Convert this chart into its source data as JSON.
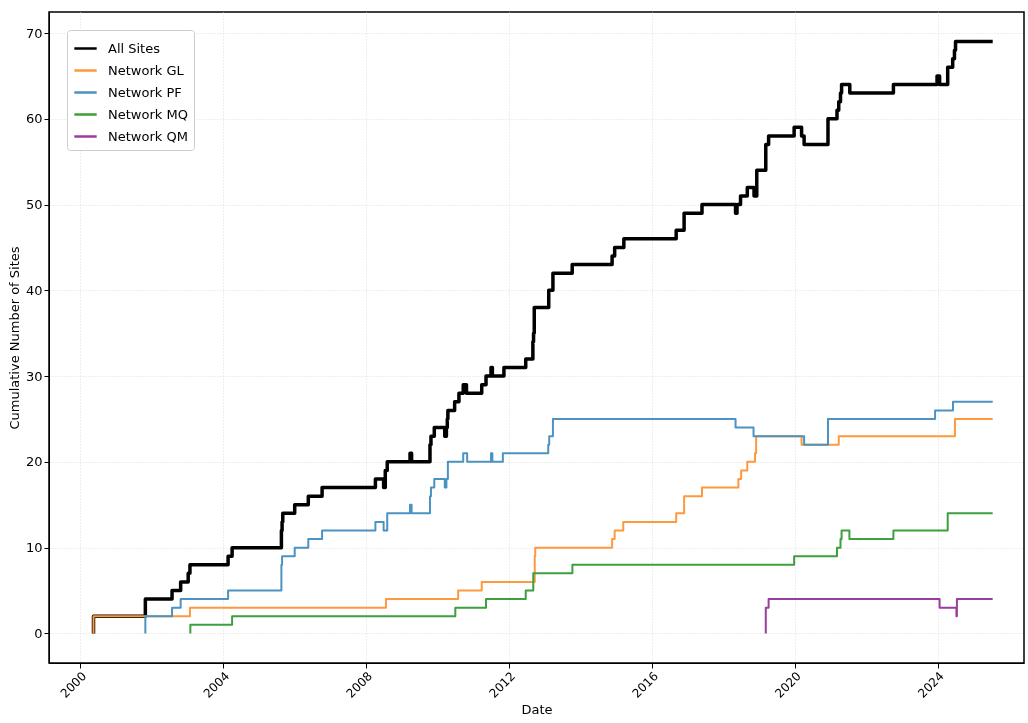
{
  "chart_data": {
    "type": "step",
    "xlabel": "Date",
    "ylabel": "Cumulative Number of Sites",
    "xlim": [
      "1999-02-15",
      "2026-06-01"
    ],
    "xticks": [
      "2000",
      "2004",
      "2008",
      "2012",
      "2016",
      "2020",
      "2024"
    ],
    "ylim": [
      -3.45,
      72.45
    ],
    "yticks": [
      0,
      10,
      20,
      30,
      40,
      50,
      60,
      70
    ],
    "grid": true,
    "legend": "top left",
    "line_style": "solid",
    "marker": "none",
    "series": [
      {
        "name": "All Sites",
        "color": "#000000",
        "x": [
          "2000-05-15",
          "2000-05-15",
          "2001-10-27",
          "2002-07-27",
          "2002-10-23",
          "2003-01-08",
          "2003-01-26",
          "2004-02-20",
          "2004-04-01",
          "2005-08-18",
          "2005-08-25",
          "2005-09-01",
          "2006-01-01",
          "2006-05-20",
          "2006-10-08",
          "2008-04-05",
          "2008-06-28",
          "2008-07-15",
          "2008-08-04",
          "2009-03-25",
          "2009-04-10",
          "2009-10-15",
          "2009-10-25",
          "2009-11-28",
          "2010-03-15",
          "2010-04-01",
          "2010-04-10",
          "2010-04-16",
          "2010-06-24",
          "2010-08-07",
          "2010-09-20",
          "2010-10-23",
          "2011-03-28",
          "2011-05-11",
          "2011-07-01",
          "2011-07-15",
          "2011-11-10",
          "2012-06-20",
          "2012-09-01",
          "2012-09-08",
          "2012-09-15",
          "2013-02-10",
          "2013-03-25",
          "2013-10-08",
          "2014-11-20",
          "2014-12-16",
          "2015-03-20",
          "2016-09-05",
          "2016-11-25",
          "2017-05-27",
          "2018-05-05",
          "2018-05-20",
          "2018-06-25",
          "2018-09-02",
          "2018-11-10",
          "2018-12-08",
          "2019-03-10",
          "2019-04-08",
          "2019-12-25",
          "2020-03-10",
          "2020-04-05",
          "2020-12-05",
          "2021-03-07",
          "2021-03-25",
          "2021-04-12",
          "2021-04-23",
          "2021-07-16",
          "2022-10-05",
          "2023-12-25",
          "2024-01-20",
          "2024-04-12",
          "2024-06-02",
          "2024-06-20",
          "2024-07-01",
          "2025-07-16"
        ],
        "values": [
          0,
          2,
          4,
          5,
          6,
          7,
          8,
          9,
          10,
          12,
          13,
          14,
          15,
          16,
          17,
          18,
          17,
          19,
          20,
          21,
          20,
          22,
          23,
          24,
          23,
          24,
          25,
          26,
          27,
          28,
          29,
          28,
          29,
          30,
          31,
          30,
          31,
          32,
          34,
          35,
          38,
          40,
          42,
          43,
          44,
          45,
          46,
          47,
          49,
          50,
          49,
          50,
          51,
          52,
          51,
          54,
          57,
          58,
          59,
          58,
          57,
          60,
          61,
          62,
          63,
          64,
          63,
          64,
          65,
          64,
          66,
          67,
          68,
          69,
          69
        ]
      },
      {
        "name": "Network GL",
        "color": "#ff993e",
        "x": [
          "2000-05-15",
          "2000-05-15",
          "2003-01-26",
          "2008-07-22",
          "2010-07-30",
          "2011-03-28",
          "2012-09-20",
          "2012-09-25",
          "2014-11-20",
          "2014-12-16",
          "2015-03-14",
          "2016-09-05",
          "2016-11-25",
          "2017-05-27",
          "2018-06-03",
          "2018-07-01",
          "2018-09-02",
          "2018-11-20",
          "2018-12-01",
          "2020-03-10",
          "2021-03-25",
          "2024-06-25",
          "2025-07-16"
        ],
        "values": [
          0,
          2,
          3,
          4,
          5,
          6,
          9,
          10,
          11,
          12,
          13,
          14,
          16,
          17,
          18,
          19,
          20,
          21,
          23,
          22,
          23,
          25,
          25
        ]
      },
      {
        "name": "Network PF",
        "color": "#4c92c3",
        "x": [
          "2001-10-27",
          "2001-10-27",
          "2002-07-27",
          "2002-10-23",
          "2004-02-20",
          "2005-08-18",
          "2005-08-25",
          "2006-01-01",
          "2006-05-20",
          "2006-10-08",
          "2008-04-05",
          "2008-06-28",
          "2008-08-04",
          "2009-03-25",
          "2009-04-10",
          "2009-10-15",
          "2009-10-25",
          "2009-11-28",
          "2010-03-15",
          "2010-04-01",
          "2010-04-16",
          "2010-09-20",
          "2010-10-30",
          "2011-07-01",
          "2011-07-15",
          "2011-10-30",
          "2013-02-05",
          "2013-02-15",
          "2013-03-25",
          "2018-05-05",
          "2018-11-05",
          "2020-04-05",
          "2020-12-05",
          "2023-12-05",
          "2024-06-05",
          "2025-07-16"
        ],
        "values": [
          0,
          2,
          3,
          4,
          5,
          8,
          9,
          10,
          11,
          12,
          13,
          12,
          14,
          15,
          14,
          16,
          17,
          18,
          17,
          18,
          20,
          21,
          20,
          21,
          20,
          21,
          22,
          23,
          25,
          24,
          23,
          22,
          25,
          26,
          27,
          27
        ]
      },
      {
        "name": "Network MQ",
        "color": "#3d9f3d",
        "x": [
          "2003-01-30",
          "2003-01-30",
          "2004-04-01",
          "2010-07-01",
          "2011-05-11",
          "2012-06-20",
          "2012-09-05",
          "2013-10-10",
          "2019-12-25",
          "2021-03-07",
          "2021-04-12",
          "2021-04-23",
          "2021-07-12",
          "2022-10-05",
          "2024-04-12",
          "2025-07-16"
        ],
        "values": [
          0,
          1,
          2,
          3,
          4,
          5,
          7,
          8,
          9,
          10,
          11,
          12,
          11,
          12,
          14,
          14
        ]
      },
      {
        "name": "Network QM",
        "color": "#9b3d9e",
        "x": [
          "2019-03-10",
          "2019-03-10",
          "2019-04-08",
          "2024-01-20",
          "2024-07-10",
          "2024-07-15",
          "2025-07-16"
        ],
        "values": [
          0,
          3,
          4,
          3,
          2,
          4,
          4
        ]
      }
    ]
  }
}
